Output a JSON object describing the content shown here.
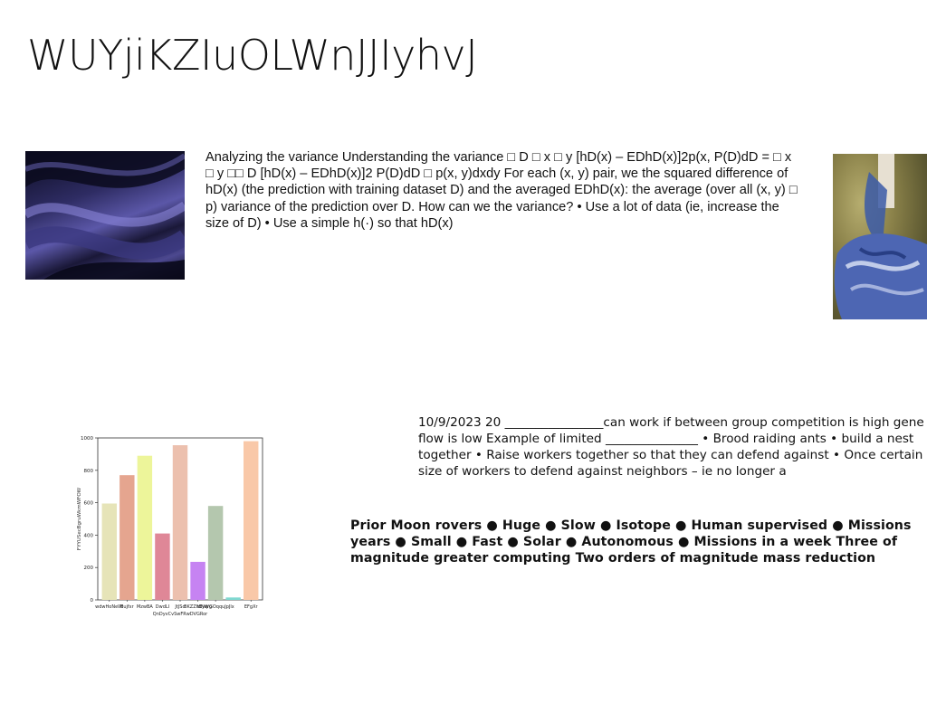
{
  "title": "WUYjiKZIuOLWnJJIyhvJ",
  "paragraph_1": "Analyzing the variance Understanding the variance □ D □ x □ y [hD(x) – EDhD(x)]2p(x, P(D)dD = □ x □ y □□ D [hD(x) – EDhD(x)]2 P(D)dD □ p(x, y)dxdy For each (x, y) pair, we the squared difference of hD(x) (the prediction with training dataset D) and the averaged EDhD(x): the average (over all (x, y) □ p) variance of the prediction over D. How can we the variance? • Use a lot of data (ie, increase the size of D) • Use a simple h(·) so that hD(x)",
  "paragraph_2": "10/9/2023 20 ________________can work if between group competition is high gene flow is low Example of limited _______________ • Brood raiding ants • build a nest together • Raise workers together so that they can defend against • Once certain size of workers to defend against neighbors – ie no longer a",
  "paragraph_3": "Prior Moon rovers ● Huge ● Slow ● Isotope ● Human supervised ● Missions years ● Small ● Fast ● Solar ● Autonomous ● Missions in a week Three of magnitude greater computing Two orders of magnitude mass reduction",
  "chart_data": {
    "type": "bar",
    "categories": [
      "wdwHoNeWi",
      "Bujfxr",
      "MzwBA",
      "DwdLI",
      "JtJSdvQnDyvCvSwFRwDVGRor",
      "BKZZhEyWg",
      "ldNqrGOqquJpJlx",
      "",
      "EFgXr"
    ],
    "tick_labels": [
      "wdwHoNeWi",
      "Bujfxr",
      "MzwBA",
      "DwdLI",
      "JtJSd",
      "BKZZhEyWg",
      "ldNqrGOqquJpJlx",
      "EFgXr"
    ],
    "tick_label_sub": "QnDyvCvSwFRwDVGRor",
    "values": [
      595,
      770,
      890,
      410,
      955,
      235,
      580,
      15,
      980
    ],
    "colors": [
      "#e6e4b8",
      "#e5a58f",
      "#edf59a",
      "#df8797",
      "#ecc0ae",
      "#c683f2",
      "#b4c7ae",
      "#7fd8d0",
      "#f9c8a8"
    ],
    "ylabel": "FYYUSecBgruWkmWFOW",
    "ylim": [
      0,
      1000
    ],
    "yticks": [
      0,
      200,
      400,
      600,
      800,
      1000
    ],
    "grid": false
  }
}
